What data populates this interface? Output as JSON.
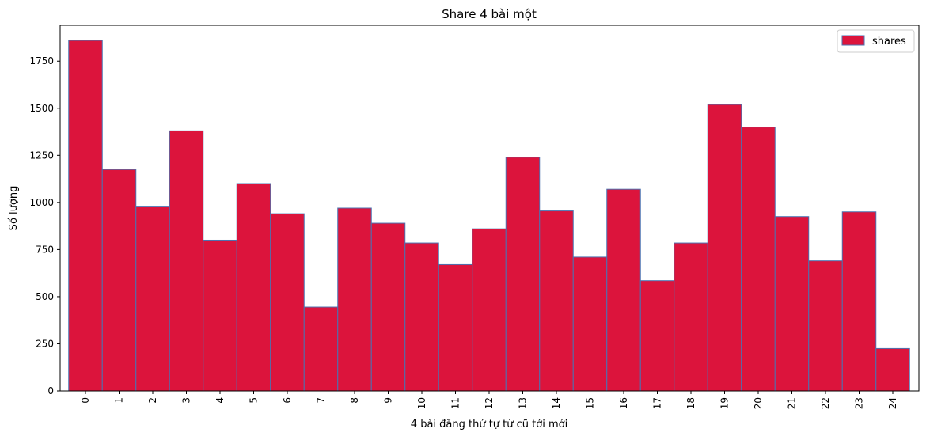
{
  "chart_data": {
    "type": "bar",
    "title": "Share 4 bài một",
    "xlabel": "4 bài đăng thứ tự từ cũ tới mới",
    "ylabel": "Số lượng",
    "categories": [
      "0",
      "1",
      "2",
      "3",
      "4",
      "5",
      "6",
      "7",
      "8",
      "9",
      "10",
      "11",
      "12",
      "13",
      "14",
      "15",
      "16",
      "17",
      "18",
      "19",
      "20",
      "21",
      "22",
      "23",
      "24"
    ],
    "series": [
      {
        "name": "shares",
        "values": [
          1860,
          1175,
          980,
          1380,
          800,
          1100,
          940,
          445,
          970,
          890,
          785,
          670,
          860,
          1240,
          955,
          710,
          1070,
          585,
          785,
          1520,
          1400,
          925,
          690,
          950,
          225
        ]
      }
    ],
    "ylim": [
      0,
      1940
    ],
    "yticks": [
      0,
      250,
      500,
      750,
      1000,
      1250,
      1500,
      1750
    ],
    "legend": "top-right",
    "grid": false,
    "colors": {
      "bar_fill": "#dc143c",
      "bar_edge": "#4c72b0"
    }
  }
}
